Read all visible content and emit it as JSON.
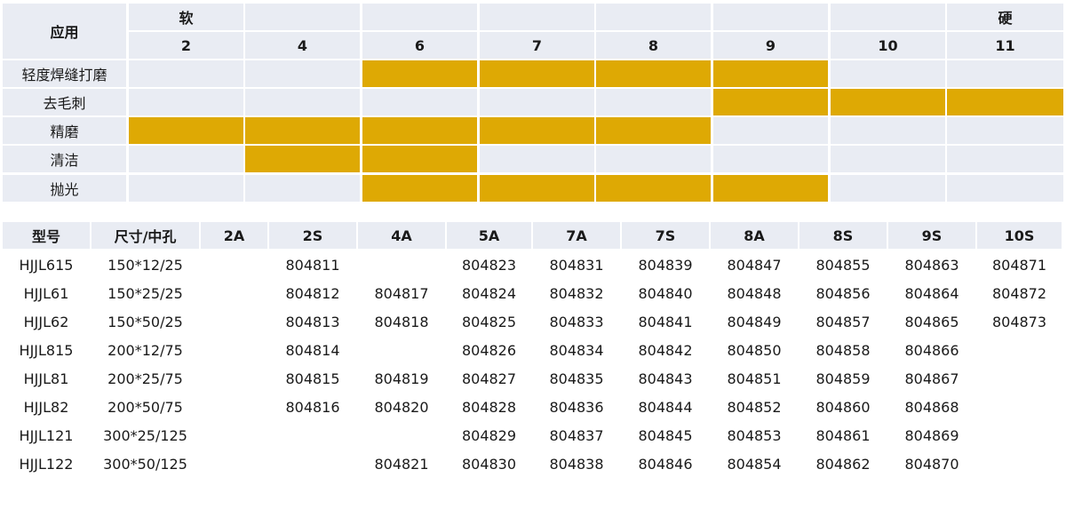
{
  "colors": {
    "row_bg": "#e9ecf3",
    "highlight": "#dea904",
    "text": "#1a1a1a"
  },
  "application_table": {
    "header_label": "应用",
    "soft_label": "软",
    "hard_label": "硬",
    "grades": [
      "2",
      "4",
      "6",
      "7",
      "8",
      "9",
      "10",
      "11"
    ],
    "rows": [
      {
        "label": "轻度焊缝打磨",
        "filled": [
          false,
          false,
          true,
          true,
          true,
          true,
          false,
          false
        ]
      },
      {
        "label": "去毛刺",
        "filled": [
          false,
          false,
          false,
          false,
          false,
          true,
          true,
          true
        ]
      },
      {
        "label": "精磨",
        "filled": [
          true,
          true,
          true,
          true,
          true,
          false,
          false,
          false
        ]
      },
      {
        "label": "清洁",
        "filled": [
          false,
          true,
          true,
          false,
          false,
          false,
          false,
          false
        ]
      },
      {
        "label": "抛光",
        "filled": [
          false,
          false,
          true,
          true,
          true,
          true,
          false,
          false
        ]
      }
    ]
  },
  "model_table": {
    "headers": [
      "型号",
      "尺寸/中孔",
      "2A",
      "2S",
      "4A",
      "5A",
      "7A",
      "7S",
      "8A",
      "8S",
      "9S",
      "10S"
    ],
    "rows": [
      [
        "HJJL615",
        "150*12/25",
        "",
        "804811",
        "",
        "804823",
        "804831",
        "804839",
        "804847",
        "804855",
        "804863",
        "804871"
      ],
      [
        "HJJL61",
        "150*25/25",
        "",
        "804812",
        "804817",
        "804824",
        "804832",
        "804840",
        "804848",
        "804856",
        "804864",
        "804872"
      ],
      [
        "HJJL62",
        "150*50/25",
        "",
        "804813",
        "804818",
        "804825",
        "804833",
        "804841",
        "804849",
        "804857",
        "804865",
        "804873"
      ],
      [
        "HJJL815",
        "200*12/75",
        "",
        "804814",
        "",
        "804826",
        "804834",
        "804842",
        "804850",
        "804858",
        "804866",
        ""
      ],
      [
        "HJJL81",
        "200*25/75",
        "",
        "804815",
        "804819",
        "804827",
        "804835",
        "804843",
        "804851",
        "804859",
        "804867",
        ""
      ],
      [
        "HJJL82",
        "200*50/75",
        "",
        "804816",
        "804820",
        "804828",
        "804836",
        "804844",
        "804852",
        "804860",
        "804868",
        ""
      ],
      [
        "HJJL121",
        "300*25/125",
        "",
        "",
        "",
        "804829",
        "804837",
        "804845",
        "804853",
        "804861",
        "804869",
        ""
      ],
      [
        "HJJL122",
        "300*50/125",
        "",
        "",
        "804821",
        "804830",
        "804838",
        "804846",
        "804854",
        "804862",
        "804870",
        ""
      ]
    ]
  }
}
